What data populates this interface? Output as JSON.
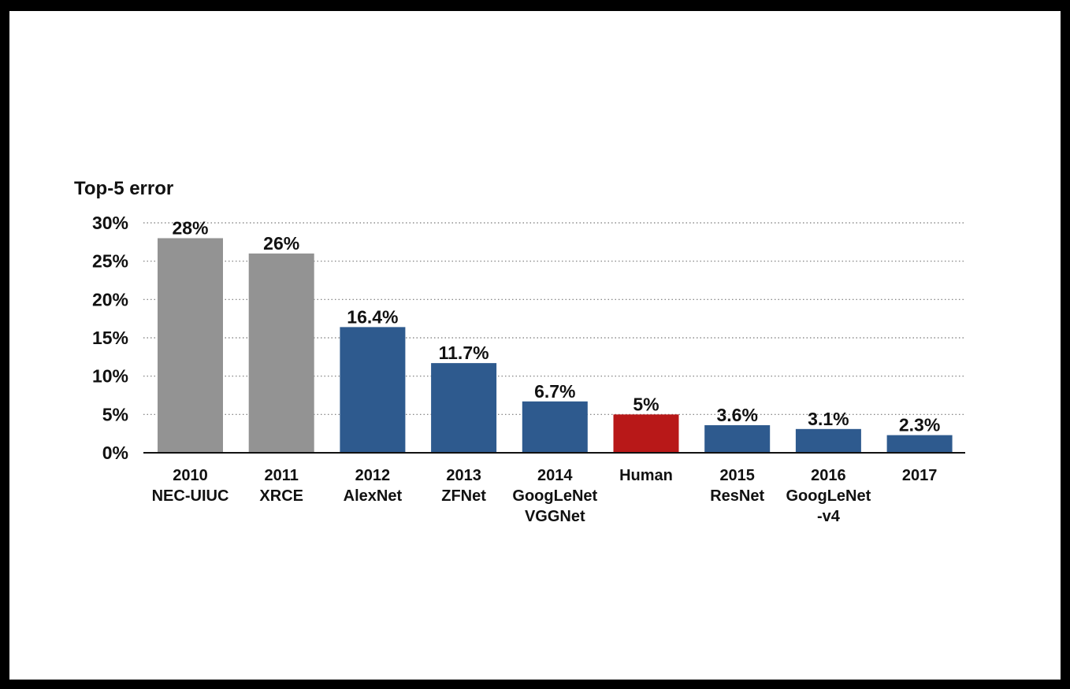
{
  "chart_data": {
    "type": "bar",
    "ylabel": "Top-5 error",
    "ylim": [
      0,
      30
    ],
    "yticks": [
      "0%",
      "5%",
      "10%",
      "15%",
      "20%",
      "25%",
      "30%"
    ],
    "ytick_values": [
      0,
      5,
      10,
      15,
      20,
      25,
      30
    ],
    "grid": true,
    "categories": [
      [
        "2010",
        "NEC-UIUC"
      ],
      [
        "2011",
        "XRCE"
      ],
      [
        "2012",
        "AlexNet"
      ],
      [
        "2013",
        "ZFNet"
      ],
      [
        "2014",
        "GoogLeNet",
        "VGGNet"
      ],
      [
        "Human"
      ],
      [
        "2015",
        "ResNet"
      ],
      [
        "2016",
        "GoogLeNet",
        "-v4"
      ],
      [
        "2017"
      ]
    ],
    "values": [
      28,
      26,
      16.4,
      11.7,
      6.7,
      5,
      3.6,
      3.1,
      2.3
    ],
    "value_labels": [
      "28%",
      "26%",
      "16.4%",
      "11.7%",
      "6.7%",
      "5%",
      "3.6%",
      "3.1%",
      "2.3%"
    ],
    "colors": [
      "#939393",
      "#939393",
      "#2e5a8e",
      "#2e5a8e",
      "#2e5a8e",
      "#b81818",
      "#2e5a8e",
      "#2e5a8e",
      "#2e5a8e"
    ]
  }
}
